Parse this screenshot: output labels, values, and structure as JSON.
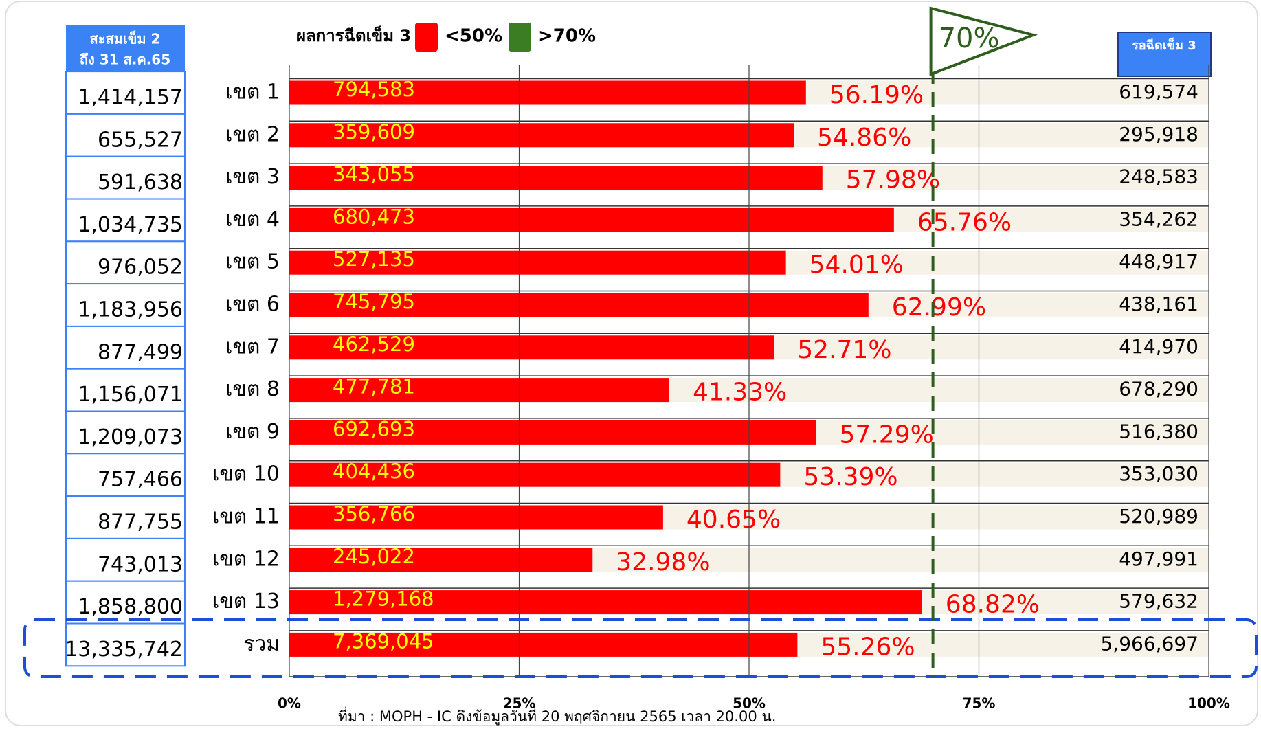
{
  "chart_data": {
    "type": "bar",
    "legend_title": "ผลการฉีดเข็ม 3",
    "legend": [
      {
        "name": "<50%",
        "color": "#ff0000"
      },
      {
        "name": ">70%",
        "color": "#3a7d22"
      }
    ],
    "categories": [
      "เขต 1",
      "เขต 2",
      "เขต 3",
      "เขต 4",
      "เขต 5",
      "เขต 6",
      "เขต 7",
      "เขต 8",
      "เขต 9",
      "เขต 10",
      "เขต 11",
      "เขต 12",
      "เขต 13",
      "รวม"
    ],
    "values": [
      56.19,
      54.86,
      57.98,
      65.76,
      54.01,
      62.99,
      52.71,
      41.33,
      57.29,
      53.39,
      40.65,
      32.98,
      68.82,
      55.26
    ],
    "value_labels": [
      "56.19%",
      "54.86%",
      "57.98%",
      "65.76%",
      "54.01%",
      "62.99%",
      "52.71%",
      "41.33%",
      "57.29%",
      "53.39%",
      "40.65%",
      "32.98%",
      "68.82%",
      "55.26%"
    ],
    "color": "#ff0000",
    "background_color": "#f6f2e8",
    "dose3_labels": [
      "794,583",
      "359,609",
      "343,055",
      "680,473",
      "527,135",
      "745,795",
      "462,529",
      "477,781",
      "692,693",
      "404,436",
      "356,766",
      "245,022",
      "1,279,168",
      "7,369,045"
    ],
    "left_header": [
      "สะสมเข็ม 2",
      "ถึง 31 ส.ค.65"
    ],
    "left_column": [
      "1,414,157",
      "655,527",
      "591,638",
      "1,034,735",
      "976,052",
      "1,183,956",
      "877,499",
      "1,156,071",
      "1,209,073",
      "757,466",
      "877,755",
      "743,013",
      "1,858,800",
      "13,335,742"
    ],
    "right_header": "รอฉีดเข็ม 3",
    "right_column": [
      "619,574",
      "295,918",
      "248,583",
      "354,262",
      "448,917",
      "438,161",
      "414,970",
      "678,290",
      "516,380",
      "353,030",
      "520,989",
      "497,991",
      "579,632",
      "5,966,697"
    ],
    "target": {
      "value": 70,
      "label": "70%"
    },
    "xlim": [
      0,
      100
    ],
    "xticks": [
      {
        "value": 0,
        "label": "0%"
      },
      {
        "value": 25,
        "label": "25%"
      },
      {
        "value": 50,
        "label": "50%"
      },
      {
        "value": 75,
        "label": "75%"
      },
      {
        "value": 100,
        "label": "100%"
      }
    ],
    "source": "ที่มา : MOPH - IC ดึงข้อมูลวันที่ 20 พฤศจิกายน 2565 เวลา 20.00 น."
  }
}
